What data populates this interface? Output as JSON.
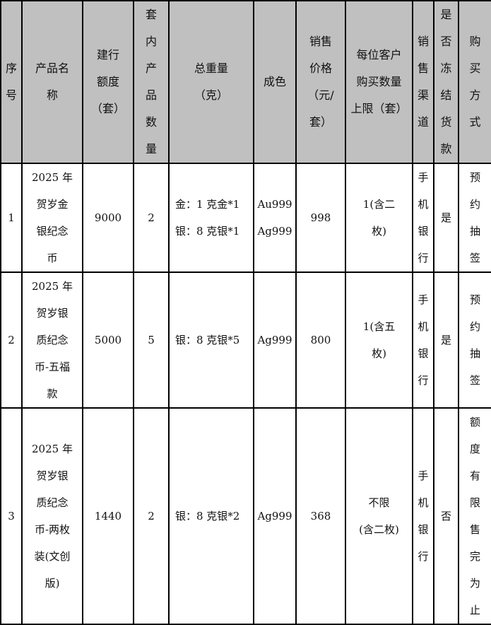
{
  "header": [
    [
      "序",
      "号"
    ],
    [
      "产品名",
      "称"
    ],
    [
      "建行",
      "额度",
      "（套）"
    ],
    [
      "套",
      "内",
      "产",
      "品",
      "数",
      "量"
    ],
    [
      "总重量",
      "（克）"
    ],
    [
      "成色"
    ],
    [
      "销售",
      "价格",
      "（元/",
      "套）"
    ],
    [
      "每位客户",
      "购买数量",
      "上限（套）"
    ],
    [
      "销",
      "售",
      "渠",
      "道"
    ],
    [
      "是",
      "否",
      "冻",
      "结",
      "货",
      "款"
    ],
    [
      "购",
      "买",
      "方",
      "式"
    ]
  ],
  "rows": [
    [
      [
        "1"
      ],
      [
        "2025 年",
        "贺岁金",
        "银纪念",
        "币"
      ],
      [
        "9000"
      ],
      [
        "2"
      ],
      [
        "金：1 克金*1",
        "银：8 克银*1"
      ],
      [
        "Au999",
        "Ag999"
      ],
      [
        "998"
      ],
      [
        "1(含二",
        "枚)"
      ],
      [
        "手",
        "机",
        "银",
        "行"
      ],
      [
        "是"
      ],
      [
        "预",
        "约",
        "抽",
        "签"
      ]
    ],
    [
      [
        "2"
      ],
      [
        "2025 年",
        "贺岁银",
        "质纪念",
        "币-五福",
        "款"
      ],
      [
        "5000"
      ],
      [
        "5"
      ],
      [
        "银：8 克银*5"
      ],
      [
        "Ag999"
      ],
      [
        "800"
      ],
      [
        "1(含五",
        "枚)"
      ],
      [
        "手",
        "机",
        "银",
        "行"
      ],
      [
        "是"
      ],
      [
        "预",
        "约",
        "抽",
        "签"
      ]
    ],
    [
      [
        "3"
      ],
      [
        "2025 年",
        "贺岁银",
        "质纪念",
        "币-两枚",
        "装(文创",
        "版)"
      ],
      [
        "1440"
      ],
      [
        "2"
      ],
      [
        "银：8 克银*2"
      ],
      [
        "Ag999"
      ],
      [
        "368"
      ],
      [
        "不限",
        "(含二枚)"
      ],
      [
        "手",
        "机",
        "银",
        "行"
      ],
      [
        "否"
      ],
      [
        "额",
        "度",
        "有",
        "限",
        "售",
        "完",
        "为",
        "止"
      ]
    ]
  ]
}
